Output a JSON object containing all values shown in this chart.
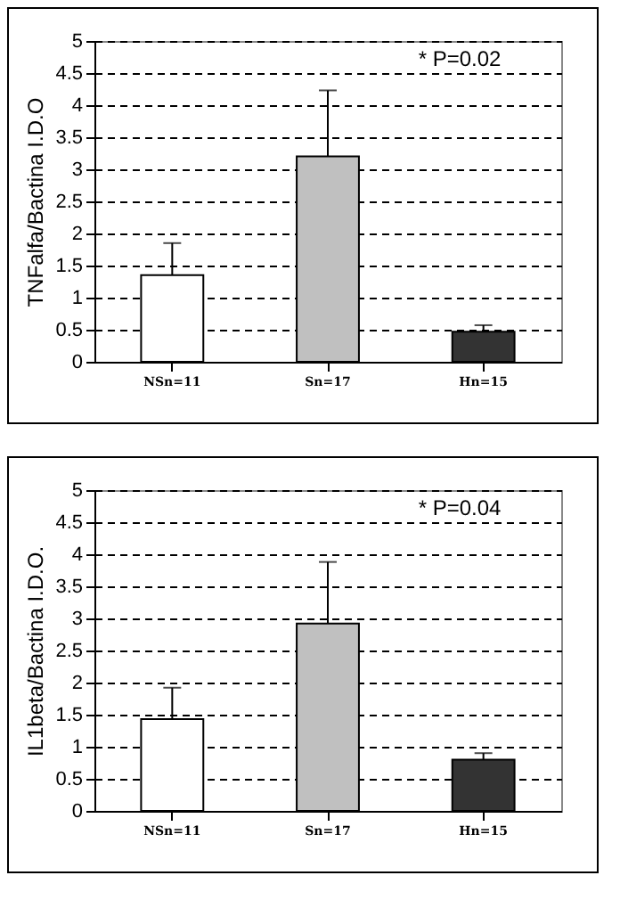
{
  "chart_data": [
    {
      "type": "bar",
      "ylabel": "TNFalfa/Bactina I.D.O",
      "categories": [
        "NSn=11",
        "Sn=17",
        "Hn=15"
      ],
      "values": [
        1.35,
        3.2,
        0.47
      ],
      "colors": [
        "#ffffff",
        "#c0c0c0",
        "#333333"
      ],
      "errors": [
        [
          1.35,
          1.85
        ],
        [
          3.2,
          4.23
        ],
        [
          0.47,
          0.57
        ]
      ],
      "ylim": [
        0,
        5
      ],
      "yticks": [
        0,
        0.5,
        1,
        1.5,
        2,
        2.5,
        3,
        3.5,
        4,
        4.5,
        5
      ],
      "grid": "y",
      "annotations": [
        "* P=0.02"
      ]
    },
    {
      "type": "bar",
      "ylabel": "IL1beta/Bactina I.D.O.",
      "categories": [
        "NSn=11",
        "Sn=17",
        "Hn=15"
      ],
      "values": [
        1.43,
        2.92,
        0.8
      ],
      "colors": [
        "#ffffff",
        "#c0c0c0",
        "#333333"
      ],
      "errors": [
        [
          1.43,
          1.92
        ],
        [
          2.92,
          3.88
        ],
        [
          0.8,
          0.9
        ]
      ],
      "ylim": [
        0,
        5
      ],
      "yticks": [
        0,
        0.5,
        1,
        1.5,
        2,
        2.5,
        3,
        3.5,
        4,
        4.5,
        5
      ],
      "grid": "y",
      "annotations": [
        "* P=0.04"
      ]
    }
  ]
}
